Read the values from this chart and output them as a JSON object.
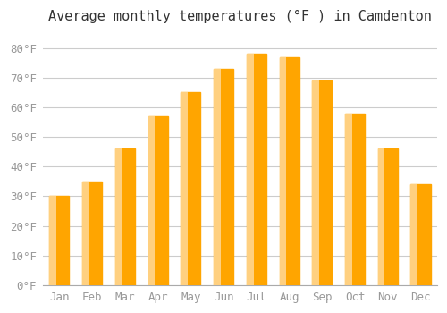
{
  "title": "Average monthly temperatures (°F ) in Camdenton",
  "months": [
    "Jan",
    "Feb",
    "Mar",
    "Apr",
    "May",
    "Jun",
    "Jul",
    "Aug",
    "Sep",
    "Oct",
    "Nov",
    "Dec"
  ],
  "values": [
    30,
    35,
    46,
    57,
    65,
    73,
    78,
    77,
    69,
    58,
    46,
    34
  ],
  "bar_color": "#FFA500",
  "bar_edge_color": "#FFC04D",
  "background_color": "#FFFFFF",
  "grid_color": "#CCCCCC",
  "ylim": [
    0,
    85
  ],
  "yticks": [
    0,
    10,
    20,
    30,
    40,
    50,
    60,
    70,
    80
  ],
  "ytick_labels": [
    "0°F",
    "10°F",
    "20°F",
    "30°F",
    "40°F",
    "50°F",
    "60°F",
    "70°F",
    "80°F"
  ],
  "title_fontsize": 11,
  "tick_fontsize": 9,
  "font_family": "monospace"
}
